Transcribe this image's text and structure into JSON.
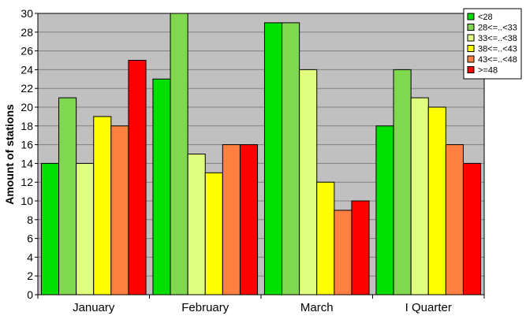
{
  "chart_data": {
    "type": "bar",
    "title": "",
    "xlabel": "",
    "ylabel": "Amount of stations",
    "ylim": [
      0,
      30
    ],
    "ytick_step": 2,
    "grid": true,
    "legend_placement": "top-right",
    "plot_background": "#c0c0c0",
    "categories": [
      "January",
      "February",
      "March",
      "I Quarter"
    ],
    "series": [
      {
        "name": "<28",
        "color": "#00e000",
        "values": [
          14,
          23,
          29,
          18
        ]
      },
      {
        "name": "28<=..<33",
        "color": "#80d850",
        "values": [
          21,
          30,
          29,
          24
        ]
      },
      {
        "name": "33<=..<38",
        "color": "#e0ff80",
        "values": [
          14,
          15,
          24,
          21
        ]
      },
      {
        "name": "38<=..<43",
        "color": "#ffff00",
        "values": [
          19,
          13,
          12,
          20
        ]
      },
      {
        "name": "43<=..<48",
        "color": "#ff8040",
        "values": [
          18,
          16,
          9,
          16
        ]
      },
      {
        "name": ">=48",
        "color": "#ff0000",
        "values": [
          25,
          16,
          10,
          14
        ]
      }
    ]
  }
}
